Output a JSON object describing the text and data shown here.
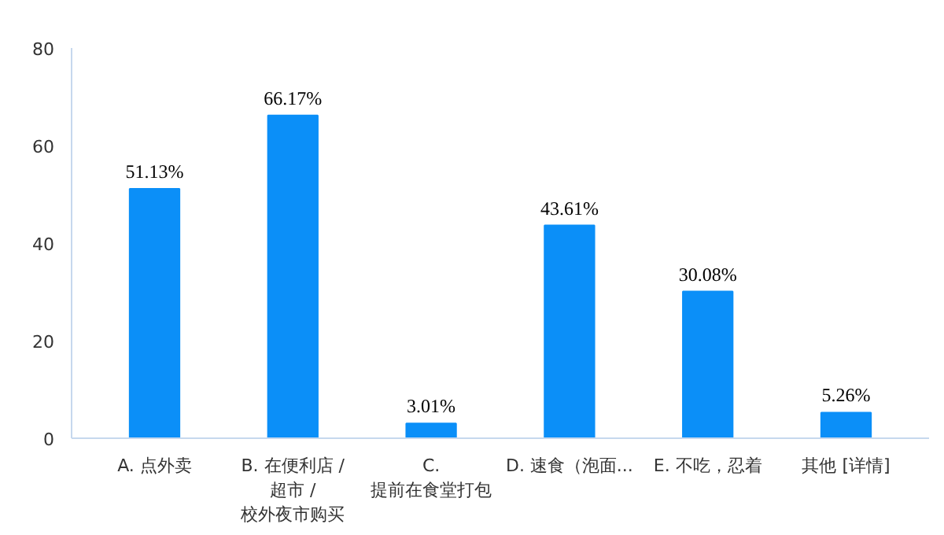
{
  "chart_data": {
    "type": "bar",
    "categories": [
      "A. 点外卖",
      "B. 在便利店 /\n超市 /\n校外夜市购买",
      "C.\n提前在食堂打包",
      "D. 速食（泡面...",
      "E. 不吃，忍着",
      "其他 [详情]"
    ],
    "values": [
      51.13,
      66.17,
      3.01,
      43.61,
      30.08,
      5.26
    ],
    "value_labels": [
      "51.13%",
      "66.17%",
      "3.01%",
      "43.61%",
      "30.08%",
      "5.26%"
    ],
    "color": "#0b8ff8",
    "ylim": [
      0,
      80
    ],
    "yticks": [
      0,
      20,
      40,
      60,
      80
    ],
    "grid": false
  }
}
